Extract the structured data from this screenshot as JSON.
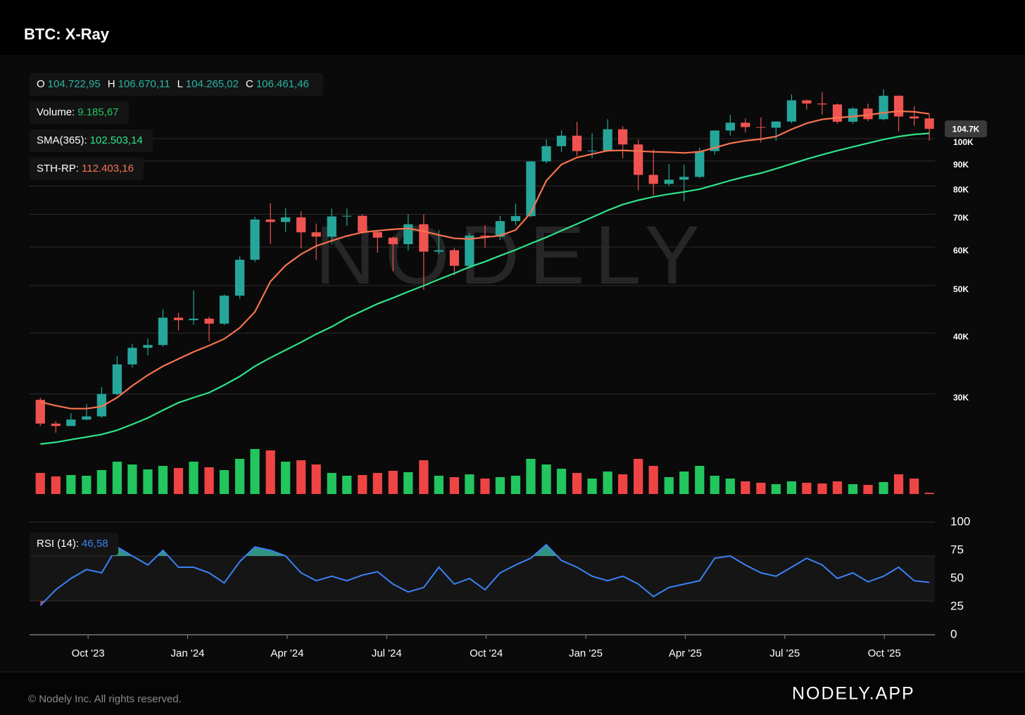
{
  "header": {
    "title": "BTC: X-Ray"
  },
  "watermark": "NODELY",
  "footer": {
    "copyright": "© Nodely Inc. All rights reserved.",
    "brand": "NODELY.APP"
  },
  "chart_data": [
    {
      "type": "candlestick",
      "x": [
        2023.63,
        2023.669,
        2023.707,
        2023.746,
        2023.784,
        2023.823,
        2023.861,
        2023.9,
        2023.938,
        2023.977,
        2024.015,
        2024.054,
        2024.092,
        2024.131,
        2024.169,
        2024.208,
        2024.246,
        2024.285,
        2024.323,
        2024.362,
        2024.4,
        2024.439,
        2024.477,
        2024.516,
        2024.554,
        2024.593,
        2024.631,
        2024.67,
        2024.708,
        2024.747,
        2024.785,
        2024.824,
        2024.862,
        2024.901,
        2024.939,
        2024.978,
        2025.016,
        2025.055,
        2025.093,
        2025.132,
        2025.17,
        2025.209,
        2025.247,
        2025.286,
        2025.324,
        2025.363,
        2025.401,
        2025.44,
        2025.478,
        2025.517,
        2025.555,
        2025.594,
        2025.632,
        2025.671,
        2025.709,
        2025.748,
        2025.786,
        2025.825,
        2025.863
      ],
      "open": [
        29200,
        26100,
        25800,
        26600,
        27000,
        30000,
        34500,
        37300,
        37800,
        43000,
        42500,
        42800,
        41800,
        47700,
        56500,
        68300,
        67500,
        69000,
        64300,
        63000,
        69300,
        69500,
        64400,
        62700,
        60800,
        66800,
        58700,
        59100,
        54900,
        63300,
        63000,
        67800,
        69400,
        89800,
        96500,
        101400,
        94300,
        94500,
        104500,
        97300,
        84300,
        80800,
        82400,
        83500,
        94300,
        103900,
        107800,
        105600,
        105300,
        108400,
        119800,
        118000,
        117500,
        108300,
        115200,
        109600,
        122400,
        111000,
        110000
      ],
      "high": [
        29500,
        26400,
        27400,
        28600,
        31000,
        35900,
        38000,
        39000,
        44700,
        44000,
        48900,
        43200,
        48000,
        57400,
        69200,
        73800,
        72000,
        71000,
        67000,
        71900,
        71900,
        70000,
        64700,
        63000,
        70000,
        70000,
        65000,
        59800,
        64100,
        66500,
        69500,
        73600,
        90000,
        99600,
        104000,
        108200,
        102700,
        109600,
        106000,
        99500,
        95000,
        88700,
        88500,
        95800,
        104000,
        111900,
        110000,
        110500,
        108500,
        123200,
        120200,
        124500,
        118000,
        116000,
        117900,
        126200,
        122600,
        116400,
        112000
      ],
      "low": [
        25800,
        25000,
        25800,
        26500,
        26800,
        29800,
        34000,
        36000,
        37500,
        40500,
        41600,
        38500,
        41500,
        47000,
        55900,
        60800,
        64500,
        59600,
        56500,
        60700,
        66300,
        64000,
        58400,
        53500,
        59000,
        49000,
        58000,
        52500,
        54200,
        59800,
        62000,
        66500,
        69000,
        89000,
        94000,
        92200,
        91200,
        94000,
        91200,
        78300,
        76600,
        80000,
        74500,
        83000,
        92800,
        101500,
        103000,
        98200,
        99000,
        107500,
        114700,
        112000,
        107300,
        107300,
        108600,
        109000,
        103500,
        106300,
        99000
      ],
      "close": [
        26100,
        25800,
        26600,
        27000,
        30000,
        34500,
        37300,
        37800,
        43000,
        42500,
        42800,
        41800,
        47700,
        56500,
        68300,
        67500,
        69000,
        64300,
        63000,
        69300,
        69500,
        64400,
        62700,
        60800,
        66800,
        58700,
        59100,
        54900,
        63300,
        63000,
        67800,
        69400,
        89800,
        96500,
        101400,
        94300,
        94500,
        104500,
        97300,
        84300,
        80800,
        82400,
        83500,
        94300,
        103900,
        107800,
        105600,
        105300,
        108400,
        119800,
        118000,
        117500,
        108300,
        115200,
        109600,
        122400,
        111000,
        110000,
        104700
      ],
      "up_color": "#26a69a",
      "down_color": "#ef5350",
      "xlim": [
        2023.603,
        2025.877
      ],
      "xticks": [
        {
          "value": 2023.75,
          "label": "Oct '23"
        },
        {
          "value": 2024.0,
          "label": "Jan '24"
        },
        {
          "value": 2024.25,
          "label": "Apr '24"
        },
        {
          "value": 2024.5,
          "label": "Jul '24"
        },
        {
          "value": 2024.75,
          "label": "Oct '24"
        },
        {
          "value": 2025.0,
          "label": "Jan '25"
        },
        {
          "value": 2025.25,
          "label": "Apr '25"
        },
        {
          "value": 2025.5,
          "label": "Jul '25"
        },
        {
          "value": 2025.75,
          "label": "Oct '25"
        }
      ],
      "ylim": [
        23000,
        145000
      ],
      "log_scale": true,
      "grid": true,
      "yticks": [
        {
          "value": 30000,
          "label": "30K"
        },
        {
          "value": 40000,
          "label": "40K"
        },
        {
          "value": 50000,
          "label": "50K"
        },
        {
          "value": 60000,
          "label": "60K"
        },
        {
          "value": 70000,
          "label": "70K"
        },
        {
          "value": 80000,
          "label": "80K"
        },
        {
          "value": 90000,
          "label": "90K"
        },
        {
          "value": 100000,
          "label": "100K"
        }
      ],
      "last_price": {
        "value": 104700,
        "label": "104.7K"
      },
      "ohlc": [
        {
          "label": "O",
          "value": "104.722,95"
        },
        {
          "label": "H",
          "value": "106.670,11"
        },
        {
          "label": "L",
          "value": "104.265,02"
        },
        {
          "label": "C",
          "value": "106.461,46"
        }
      ],
      "series": [
        {
          "name": "SMA(365):",
          "color": "#2ee38a",
          "legend_value": "102.503,14",
          "values": [
            23700,
            23900,
            24200,
            24500,
            24800,
            25300,
            26000,
            26800,
            27800,
            28800,
            29500,
            30200,
            31300,
            32600,
            34200,
            35600,
            36900,
            38300,
            39800,
            41200,
            42900,
            44400,
            45900,
            47200,
            48600,
            50000,
            51500,
            53000,
            54600,
            56000,
            57600,
            59200,
            61000,
            62800,
            64800,
            66900,
            69000,
            71300,
            73300,
            74800,
            76000,
            77000,
            77800,
            78800,
            80400,
            82100,
            83600,
            85000,
            86800,
            88800,
            90800,
            92700,
            94500,
            96200,
            97900,
            99600,
            101000,
            102000,
            102503.14
          ]
        },
        {
          "name": "STH-RP:",
          "color": "#f7734f",
          "legend_value": "112.403,16",
          "values": [
            28900,
            28400,
            28000,
            28000,
            28300,
            29500,
            31200,
            32800,
            34200,
            35400,
            36600,
            37700,
            38900,
            41000,
            44200,
            51000,
            55000,
            58000,
            60300,
            61800,
            63200,
            64300,
            64800,
            65200,
            65500,
            64600,
            63500,
            62500,
            62300,
            62800,
            63300,
            65000,
            70500,
            82000,
            88500,
            91500,
            93000,
            94500,
            94600,
            94300,
            94000,
            93800,
            93500,
            94000,
            95800,
            97800,
            99000,
            99800,
            101000,
            104500,
            107500,
            109500,
            110300,
            111000,
            111800,
            113000,
            113800,
            113500,
            112403.16
          ]
        }
      ]
    },
    {
      "type": "bar",
      "name": "Volume:",
      "legend_value": "9.185,67",
      "up_color": "#22c55e",
      "down_color": "#ef4444",
      "ylim": [
        0,
        350000
      ],
      "values": [
        150000,
        125000,
        135000,
        130000,
        170000,
        230000,
        210000,
        175000,
        200000,
        185000,
        230000,
        190000,
        170000,
        250000,
        320000,
        310000,
        230000,
        240000,
        210000,
        150000,
        130000,
        135000,
        150000,
        165000,
        155000,
        240000,
        130000,
        120000,
        140000,
        110000,
        120000,
        130000,
        250000,
        210000,
        180000,
        150000,
        110000,
        160000,
        140000,
        250000,
        200000,
        120000,
        160000,
        200000,
        130000,
        110000,
        90000,
        80000,
        70000,
        90000,
        80000,
        75000,
        90000,
        70000,
        65000,
        85000,
        140000,
        110000,
        9185.67
      ]
    },
    {
      "type": "line",
      "ylim": [
        0,
        100
      ],
      "yticks": [
        0,
        25,
        50,
        75,
        100
      ],
      "bands": [
        30,
        70
      ],
      "overbought_color": "#3fc1aa",
      "oversold_color": "#ef5350",
      "series": [
        {
          "name": "RSI (14):",
          "color": "#3b82f6",
          "legend_value": "46,58",
          "values": [
            26,
            40,
            50,
            58,
            55,
            78,
            70,
            62,
            75,
            60,
            60,
            55,
            46,
            65,
            78,
            75,
            70,
            55,
            48,
            52,
            48,
            53,
            56,
            45,
            38,
            42,
            60,
            45,
            50,
            40,
            55,
            62,
            68,
            80,
            66,
            60,
            52,
            48,
            52,
            45,
            34,
            42,
            45,
            48,
            68,
            70,
            62,
            55,
            52,
            60,
            68,
            62,
            50,
            55,
            47,
            52,
            60,
            48,
            46.58
          ]
        }
      ]
    }
  ]
}
